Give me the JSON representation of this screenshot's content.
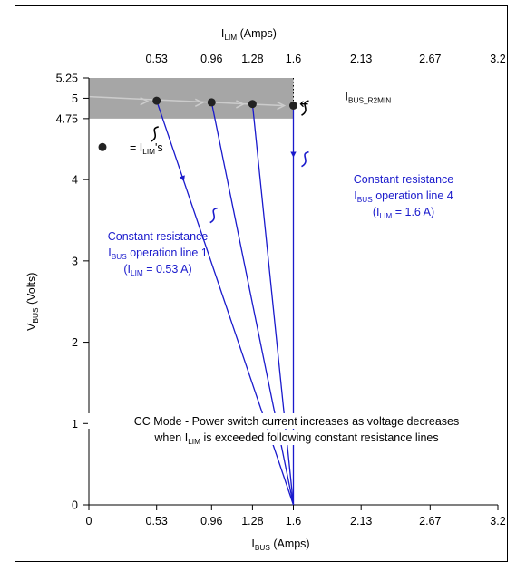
{
  "chart_data": {
    "type": "line",
    "xlabel": {
      "main": "I",
      "sub": "BUS",
      "tail": " (Amps)"
    },
    "top_xlabel": {
      "main": "I",
      "sub": "LIM",
      "tail": " (Amps)"
    },
    "ylabel": {
      "main": "V",
      "sub": "BUS",
      "tail": " (Volts)"
    },
    "xlim": [
      0,
      3.2
    ],
    "ylim": [
      0,
      5.25
    ],
    "x_ticks": [
      {
        "value": 0,
        "label": "0"
      },
      {
        "value": 0.53,
        "label": "0.53"
      },
      {
        "value": 0.96,
        "label": "0.96"
      },
      {
        "value": 1.28,
        "label": "1.28"
      },
      {
        "value": 1.6,
        "label": "1.6"
      },
      {
        "value": 2.13,
        "label": "2.13"
      },
      {
        "value": 2.67,
        "label": "2.67"
      },
      {
        "value": 3.2,
        "label": "3.2"
      }
    ],
    "top_x_ticks": [
      {
        "value": 0.53,
        "label": "0.53"
      },
      {
        "value": 0.96,
        "label": "0.96"
      },
      {
        "value": 1.28,
        "label": "1.28"
      },
      {
        "value": 1.6,
        "label": "1.6"
      },
      {
        "value": 2.13,
        "label": "2.13"
      },
      {
        "value": 2.67,
        "label": "2.67"
      },
      {
        "value": 3.2,
        "label": "3.2"
      }
    ],
    "y_ticks": [
      {
        "value": 0,
        "label": "0"
      },
      {
        "value": 1,
        "label": "1"
      },
      {
        "value": 2,
        "label": "2"
      },
      {
        "value": 3,
        "label": "3"
      },
      {
        "value": 4,
        "label": "4"
      },
      {
        "value": 4.75,
        "label": "4.75"
      },
      {
        "value": 5,
        "label": "5"
      },
      {
        "value": 5.25,
        "label": "5.25"
      }
    ],
    "band": {
      "y_min": 4.75,
      "y_max": 5.25,
      "x_min": 0,
      "x_max": 1.6,
      "color": "#a6a6a6"
    },
    "limit_line": {
      "x": 1.6,
      "label": {
        "main": "I",
        "sub": "BUS_R2MIN",
        "tail": ""
      }
    },
    "ilim_points": [
      {
        "x": 0.53,
        "y": 4.97
      },
      {
        "x": 0.96,
        "y": 4.95
      },
      {
        "x": 1.28,
        "y": 4.93
      },
      {
        "x": 1.6,
        "y": 4.91
      }
    ],
    "resistance_lines": [
      {
        "from": [
          0.53,
          4.97
        ],
        "to": [
          1.6,
          0
        ]
      },
      {
        "from": [
          0.96,
          4.95
        ],
        "to": [
          1.6,
          0
        ]
      },
      {
        "from": [
          1.28,
          4.93
        ],
        "to": [
          1.6,
          0
        ]
      },
      {
        "from": [
          1.6,
          4.91
        ],
        "to": [
          1.6,
          0
        ]
      }
    ],
    "legend": {
      "marker": "filled circle",
      "label_prefix": "= ",
      "label": {
        "main": "I",
        "sub": "LIM",
        "tail": "'s"
      }
    },
    "annotations": {
      "line1": {
        "l1": "Constant resistance",
        "l2": {
          "main": "I",
          "sub": "BUS",
          "tail": " operation line 1"
        },
        "l3": {
          "main": "(I",
          "sub": "LIM",
          "tail": " = 0.53 A)"
        }
      },
      "line4": {
        "l1": "Constant resistance",
        "l2": {
          "main": "I",
          "sub": "BUS",
          "tail": " operation line  4"
        },
        "l3": {
          "main": "(I",
          "sub": "LIM",
          "tail": " = 1.6 A)"
        }
      },
      "cc_mode": {
        "l1": "CC Mode - Power switch current increases as voltage decreases",
        "l2": {
          "main": "when I",
          "sub": "LIM",
          "tail": " is exceeded following constant resistance lines"
        }
      }
    },
    "colors": {
      "line": "#1a1acc",
      "text_blue": "#1a1acc",
      "marker": "#222222",
      "arrow": "#cccccc"
    }
  }
}
